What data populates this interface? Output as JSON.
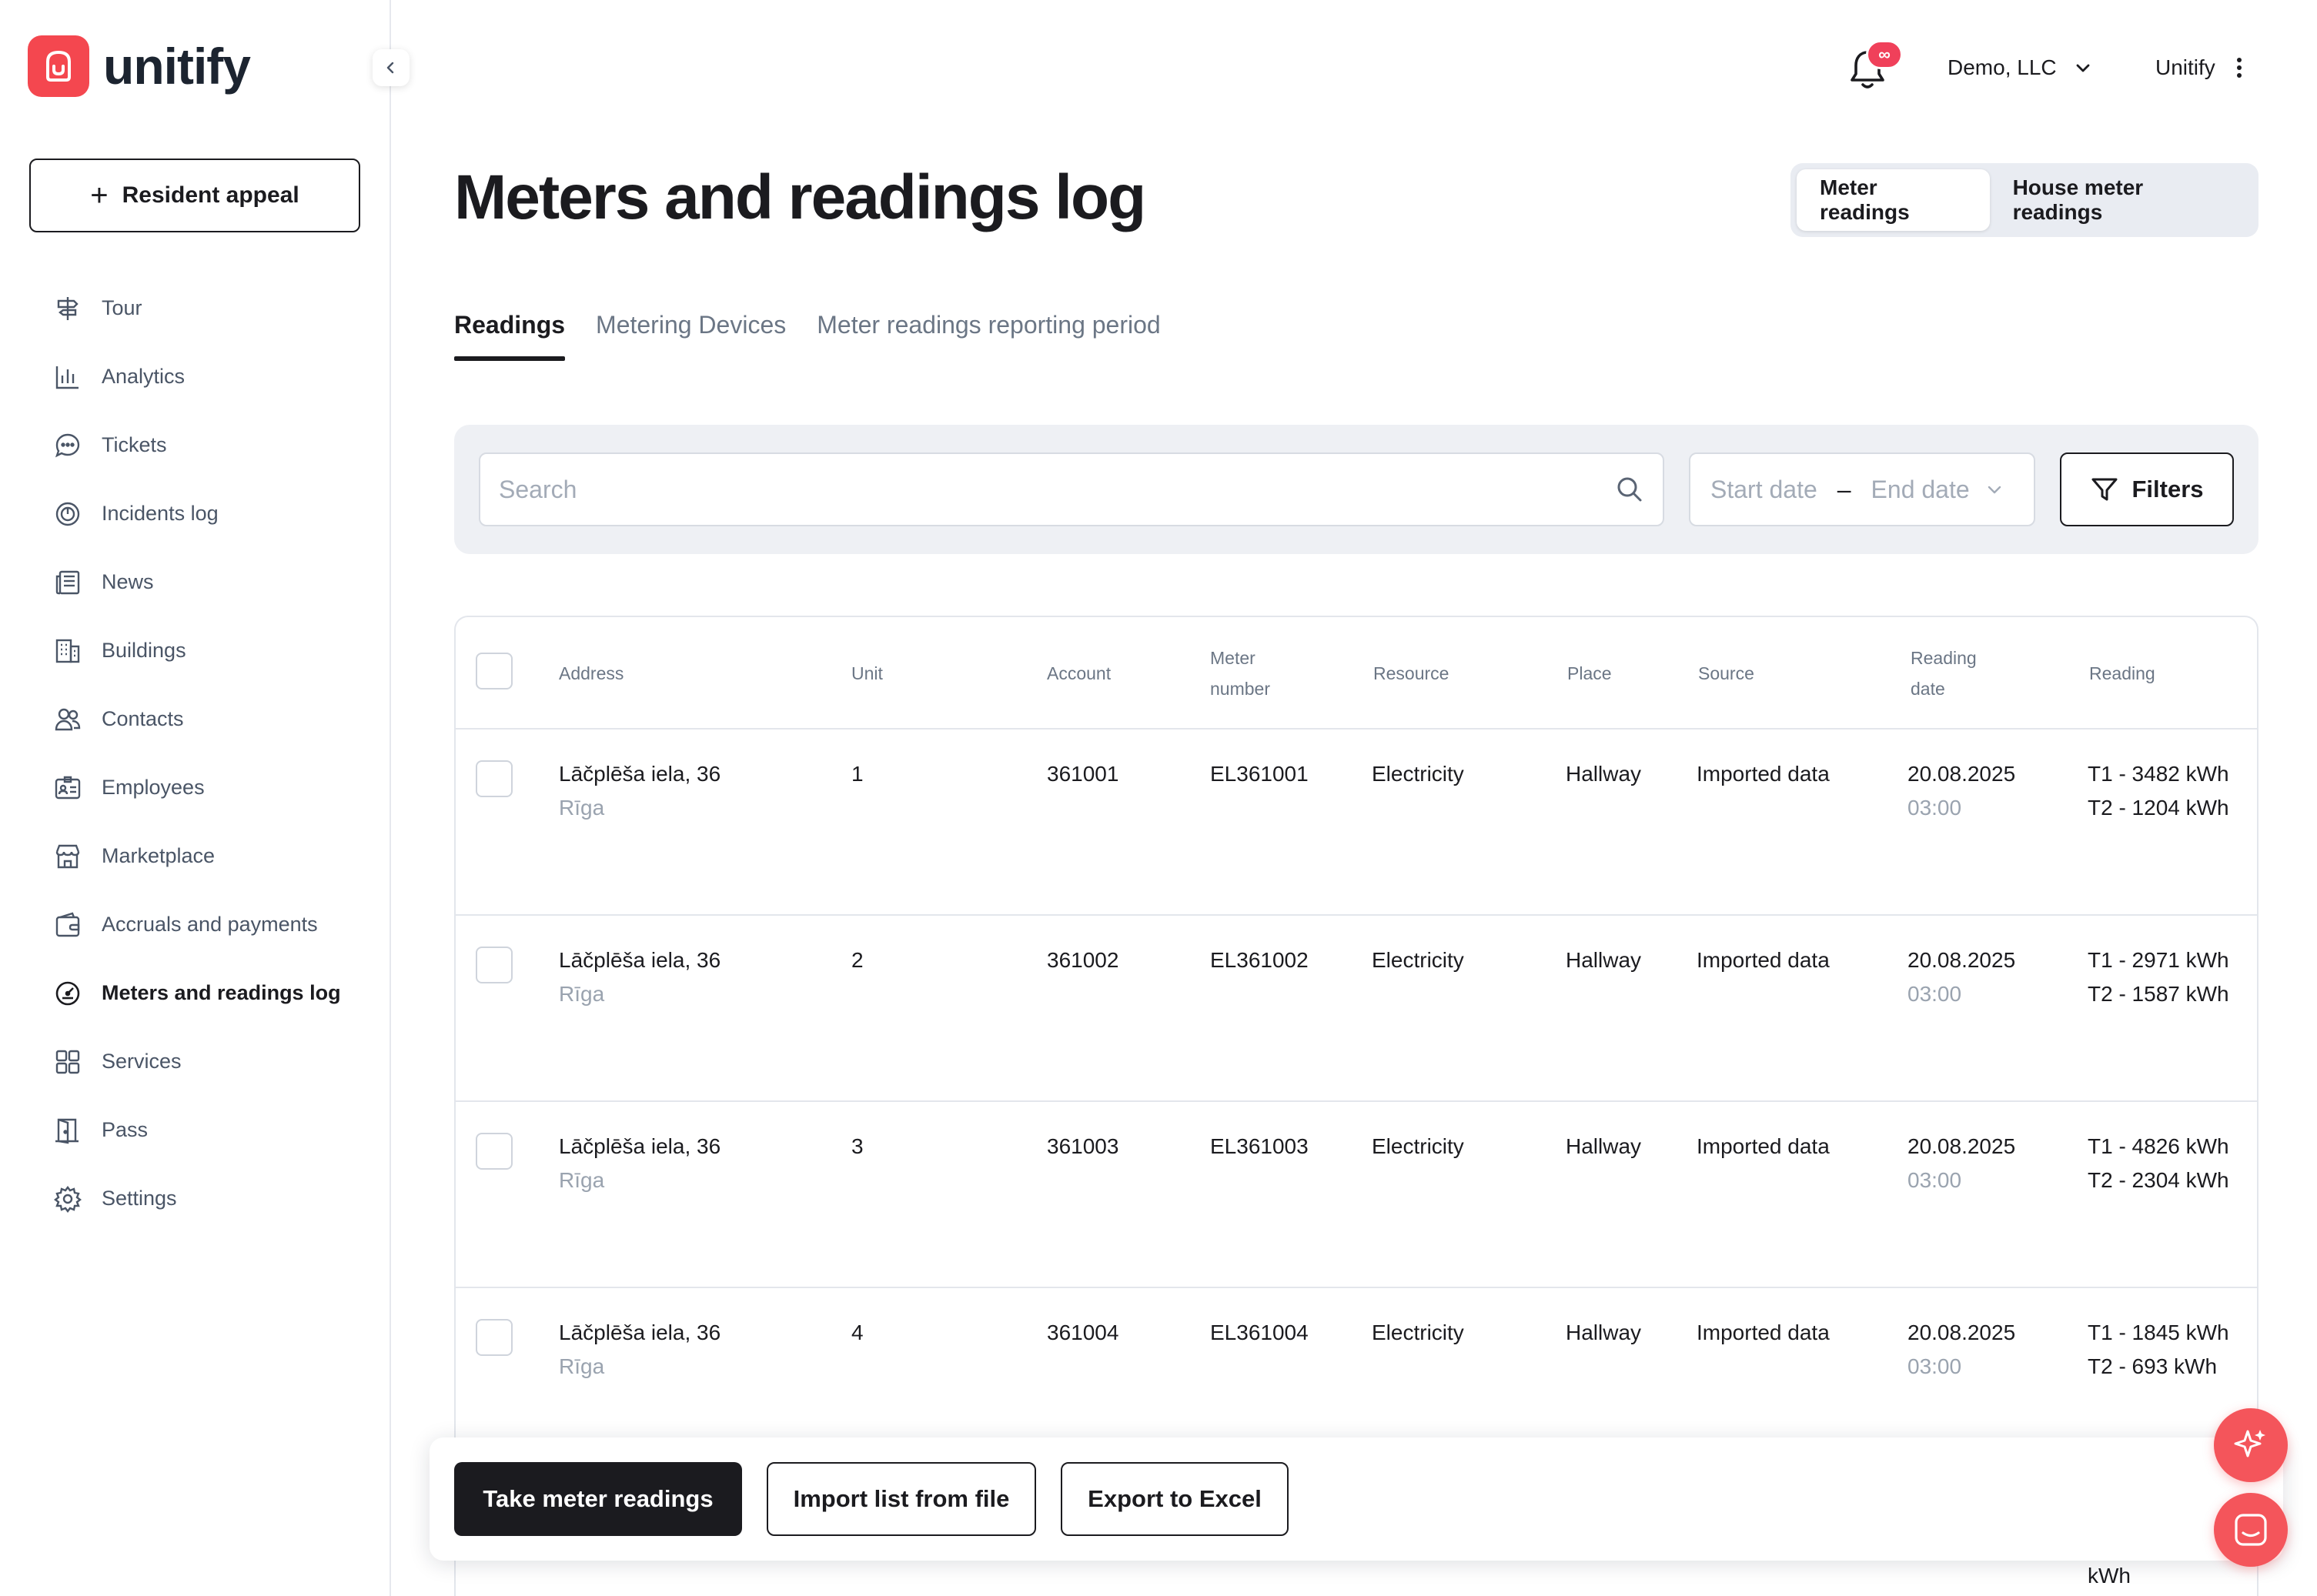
{
  "app": {
    "logo_text": "unitify"
  },
  "sidebar": {
    "appeal_button": "Resident appeal",
    "items": [
      {
        "label": "Tour",
        "icon": "signpost-icon"
      },
      {
        "label": "Analytics",
        "icon": "bar-chart-icon"
      },
      {
        "label": "Tickets",
        "icon": "chat-bubble-icon"
      },
      {
        "label": "Incidents log",
        "icon": "power-icon"
      },
      {
        "label": "News",
        "icon": "newspaper-icon"
      },
      {
        "label": "Buildings",
        "icon": "building-icon"
      },
      {
        "label": "Contacts",
        "icon": "people-icon"
      },
      {
        "label": "Employees",
        "icon": "id-card-icon"
      },
      {
        "label": "Marketplace",
        "icon": "store-icon"
      },
      {
        "label": "Accruals and payments",
        "icon": "wallet-icon"
      },
      {
        "label": "Meters and readings log",
        "icon": "meter-icon",
        "active": true
      },
      {
        "label": "Services",
        "icon": "grid-icon"
      },
      {
        "label": "Pass",
        "icon": "door-icon"
      },
      {
        "label": "Settings",
        "icon": "gear-icon"
      }
    ]
  },
  "header": {
    "notification_badge": "∞",
    "organization": "Demo, LLC",
    "user": "Unitify"
  },
  "page": {
    "title": "Meters and readings log",
    "segments": [
      "Meter readings",
      "House meter readings"
    ],
    "active_segment": "Meter readings",
    "tabs": [
      "Readings",
      "Metering Devices",
      "Meter readings reporting period"
    ],
    "active_tab": "Readings"
  },
  "filters": {
    "search_placeholder": "Search",
    "start_date_placeholder": "Start date",
    "date_separator": "–",
    "end_date_placeholder": "End date",
    "filters_button": "Filters"
  },
  "table": {
    "columns": {
      "address": "Address",
      "unit": "Unit",
      "account": "Account",
      "meter_line1": "Meter",
      "meter_line2": "number",
      "resource": "Resource",
      "place": "Place",
      "source": "Source",
      "date_line1": "Reading",
      "date_line2": "date",
      "reading": "Reading"
    },
    "rows": [
      {
        "address": "Lāčplēša iela, 36",
        "city": "Rīga",
        "unit": "1",
        "account": "361001",
        "meter": "EL361001",
        "resource": "Electricity",
        "place": "Hallway",
        "source": "Imported data",
        "date": "20.08.2025",
        "time": "03:00",
        "reading": "T1 - 3482 kWh T2 - 1204 kWh"
      },
      {
        "address": "Lāčplēša iela, 36",
        "city": "Rīga",
        "unit": "2",
        "account": "361002",
        "meter": "EL361002",
        "resource": "Electricity",
        "place": "Hallway",
        "source": "Imported data",
        "date": "20.08.2025",
        "time": "03:00",
        "reading": "T1 - 2971 kWh T2 - 1587 kWh"
      },
      {
        "address": "Lāčplēša iela, 36",
        "city": "Rīga",
        "unit": "3",
        "account": "361003",
        "meter": "EL361003",
        "resource": "Electricity",
        "place": "Hallway",
        "source": "Imported data",
        "date": "20.08.2025",
        "time": "03:00",
        "reading": "T1 - 4826 kWh T2 - 2304 kWh"
      },
      {
        "address": "Lāčplēša iela, 36",
        "city": "Rīga",
        "unit": "4",
        "account": "361004",
        "meter": "EL361004",
        "resource": "Electricity",
        "place": "Hallway",
        "source": "Imported data",
        "date": "20.08.2025",
        "time": "03:00",
        "reading": "T1 - 1845 kWh T2 - 693 kWh"
      },
      {
        "reading": "kWh"
      }
    ]
  },
  "actions": {
    "take_readings": "Take meter readings",
    "import": "Import list from file",
    "export": "Export to Excel"
  },
  "colors": {
    "brand": "#f4474f",
    "dark": "#1b1b1f",
    "muted": "#6b7685"
  }
}
